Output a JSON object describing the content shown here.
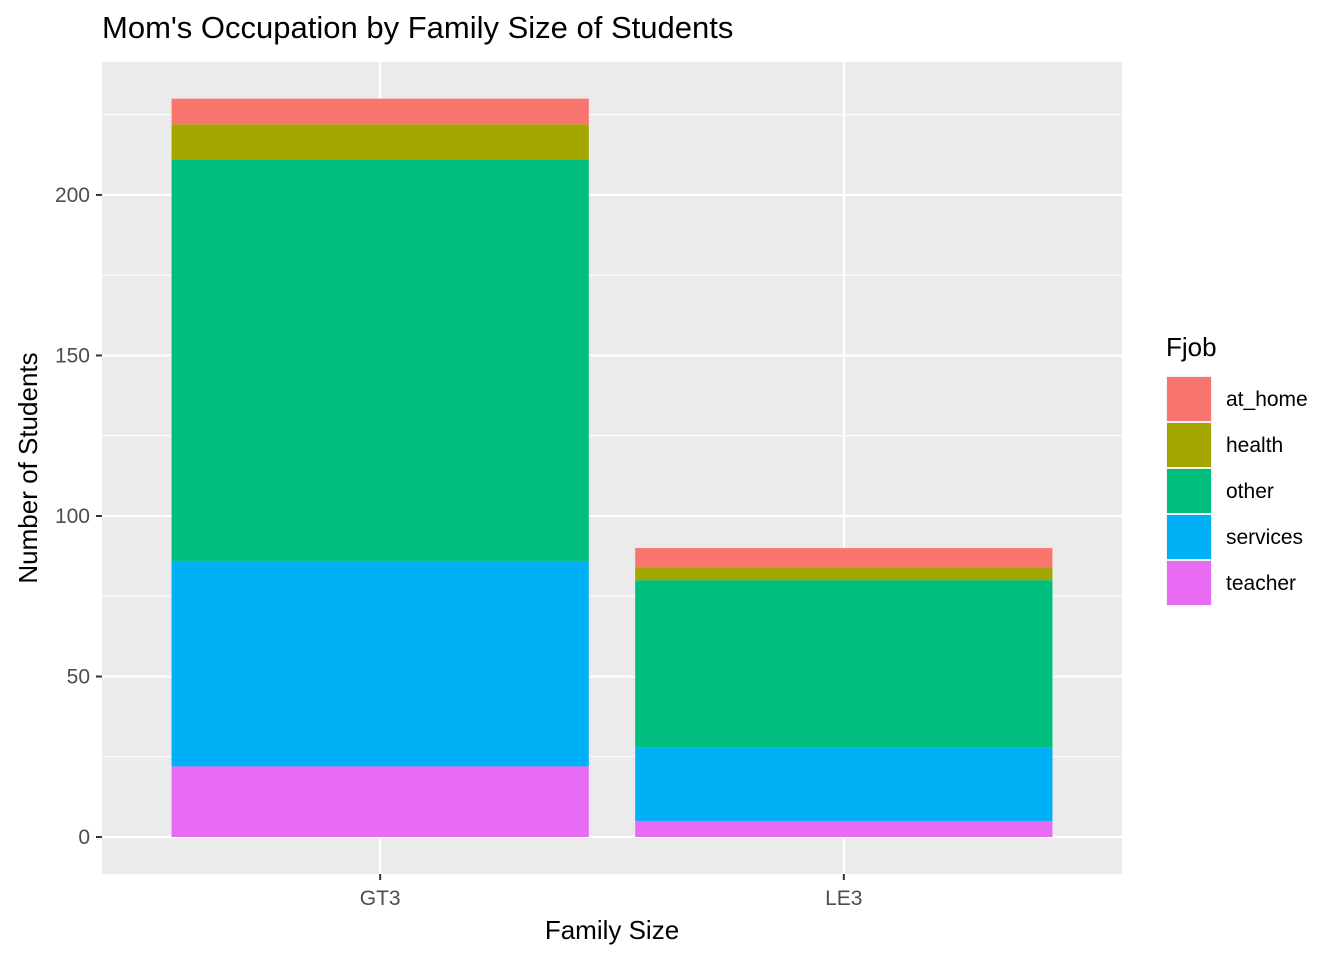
{
  "chart_data": {
    "type": "bar",
    "stacked": true,
    "title": "Mom's Occupation by Family Size of Students",
    "xlabel": "Family Size",
    "ylabel": "Number of Students",
    "categories": [
      "GT3",
      "LE3"
    ],
    "ylim": [
      0,
      230
    ],
    "yticks": [
      0,
      50,
      100,
      150,
      200
    ],
    "grid": true,
    "legend": {
      "title": "Fjob",
      "placement": "right"
    },
    "series": [
      {
        "name": "at_home",
        "color": "#F8766D",
        "values": [
          8,
          6
        ]
      },
      {
        "name": "health",
        "color": "#A3A500",
        "values": [
          11,
          4
        ]
      },
      {
        "name": "other",
        "color": "#00BF7D",
        "values": [
          125,
          52
        ]
      },
      {
        "name": "services",
        "color": "#00B0F6",
        "values": [
          64,
          23
        ]
      },
      {
        "name": "teacher",
        "color": "#E76BF3",
        "values": [
          22,
          5
        ]
      }
    ]
  }
}
